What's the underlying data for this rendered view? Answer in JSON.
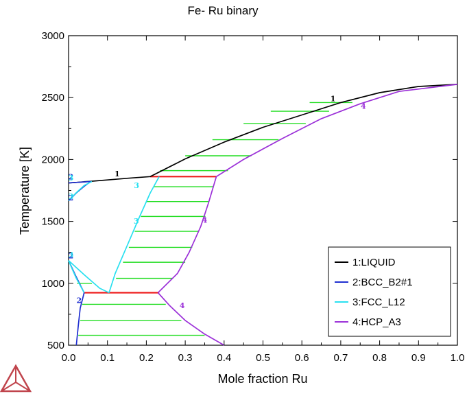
{
  "chart_data": {
    "type": "line",
    "title": "Fe- Ru binary",
    "xlabel": "Mole fraction Ru",
    "ylabel": "Temperature [K]",
    "xlim": [
      0,
      1
    ],
    "ylim": [
      500,
      3000
    ],
    "xticks": [
      0,
      0.1,
      0.2,
      0.3,
      0.4,
      0.5,
      0.6,
      0.7,
      0.8,
      0.9,
      1.0
    ],
    "xtick_labels": [
      "0.0",
      "0.1",
      "0.2",
      "0.3",
      "0.4",
      "0.5",
      "0.6",
      "0.7",
      "0.8",
      "0.9",
      "1.0"
    ],
    "yticks": [
      500,
      1000,
      1500,
      2000,
      2500,
      3000
    ],
    "ytick_labels": [
      "500",
      "1000",
      "1500",
      "2000",
      "2500",
      "3000"
    ],
    "grid": false,
    "legend_position": "bottom-right",
    "colors": {
      "LIQUID": "#000000",
      "BCC_B2#1": "#1f2fd0",
      "FCC_L12": "#28e0f0",
      "HCP_A3": "#9b30d8",
      "tie_line": "#22dd22",
      "invariant": "#ee1c1c"
    },
    "series": [
      {
        "name": "1:LIQUID",
        "key": "LIQUID",
        "label": "1",
        "segments": [
          [
            [
              0.0,
              1811
            ],
            [
              0.02,
              1815
            ],
            [
              0.05,
              1822
            ],
            [
              0.1,
              1835
            ],
            [
              0.15,
              1848
            ],
            [
              0.21,
              1862
            ],
            [
              0.3,
              2005
            ],
            [
              0.4,
              2140
            ],
            [
              0.5,
              2260
            ],
            [
              0.6,
              2360
            ],
            [
              0.7,
              2460
            ],
            [
              0.8,
              2540
            ],
            [
              0.9,
              2590
            ],
            [
              1.0,
              2607
            ]
          ]
        ]
      },
      {
        "name": "2:BCC_B2#1",
        "key": "BCC_B2#1",
        "label": "2",
        "segments": [
          [
            [
              0.0,
              1811
            ],
            [
              0.02,
              1815
            ],
            [
              0.04,
              1819
            ],
            [
              0.057,
              1822
            ]
          ],
          [
            [
              0.0,
              1667
            ],
            [
              0.02,
              1730
            ],
            [
              0.04,
              1783
            ],
            [
              0.057,
              1822
            ]
          ],
          [
            [
              0.0,
              1184
            ],
            [
              0.02,
              1050
            ],
            [
              0.04,
              924
            ]
          ],
          [
            [
              0.04,
              924
            ],
            [
              0.03,
              800
            ],
            [
              0.025,
              660
            ],
            [
              0.02,
              500
            ]
          ]
        ]
      },
      {
        "name": "3:FCC_L12",
        "key": "FCC_L12",
        "label": "3",
        "segments": [
          [
            [
              0.0,
              1667
            ],
            [
              0.02,
              1732
            ],
            [
              0.04,
              1790
            ],
            [
              0.06,
              1822
            ]
          ],
          [
            [
              0.0,
              1184
            ],
            [
              0.04,
              1070
            ],
            [
              0.08,
              960
            ],
            [
              0.104,
              924
            ]
          ],
          [
            [
              0.104,
              924
            ],
            [
              0.12,
              1080
            ],
            [
              0.15,
              1300
            ],
            [
              0.18,
              1520
            ],
            [
              0.21,
              1730
            ],
            [
              0.233,
              1862
            ]
          ],
          [
            [
              0.0,
              1184
            ],
            [
              0.01,
              1110
            ],
            [
              0.02,
              1040
            ],
            [
              0.04,
              924
            ]
          ]
        ]
      },
      {
        "name": "4:HCP_A3",
        "key": "HCP_A3",
        "label": "4",
        "segments": [
          [
            [
              0.23,
              924
            ],
            [
              0.28,
              1080
            ],
            [
              0.31,
              1250
            ],
            [
              0.34,
              1460
            ],
            [
              0.36,
              1650
            ],
            [
              0.38,
              1862
            ],
            [
              0.45,
              2000
            ],
            [
              0.55,
              2170
            ],
            [
              0.65,
              2330
            ],
            [
              0.75,
              2450
            ],
            [
              0.85,
              2550
            ],
            [
              1.0,
              2607
            ]
          ],
          [
            [
              0.23,
              924
            ],
            [
              0.26,
              820
            ],
            [
              0.3,
              700
            ],
            [
              0.35,
              590
            ],
            [
              0.4,
              500
            ]
          ]
        ]
      }
    ],
    "invariant_lines": [
      {
        "T": 1862,
        "x1": 0.21,
        "x2": 0.38
      },
      {
        "T": 924,
        "x1": 0.04,
        "x2": 0.233
      }
    ],
    "tie_lines": [
      {
        "T": 1822,
        "x1": 0.04,
        "x2": 0.057
      },
      {
        "T": 1910,
        "x1": 0.235,
        "x2": 0.41
      },
      {
        "T": 2030,
        "x1": 0.3,
        "x2": 0.47
      },
      {
        "T": 2160,
        "x1": 0.37,
        "x2": 0.54
      },
      {
        "T": 2290,
        "x1": 0.45,
        "x2": 0.61
      },
      {
        "T": 2390,
        "x1": 0.52,
        "x2": 0.67
      },
      {
        "T": 2460,
        "x1": 0.62,
        "x2": 0.73
      },
      {
        "T": 1780,
        "x1": 0.218,
        "x2": 0.372
      },
      {
        "T": 1660,
        "x1": 0.2,
        "x2": 0.36
      },
      {
        "T": 1540,
        "x1": 0.186,
        "x2": 0.352
      },
      {
        "T": 1420,
        "x1": 0.17,
        "x2": 0.335
      },
      {
        "T": 1290,
        "x1": 0.155,
        "x2": 0.318
      },
      {
        "T": 1170,
        "x1": 0.14,
        "x2": 0.3
      },
      {
        "T": 1040,
        "x1": 0.122,
        "x2": 0.268
      },
      {
        "T": 1000,
        "x1": 0.022,
        "x2": 0.06
      },
      {
        "T": 830,
        "x1": 0.035,
        "x2": 0.25
      },
      {
        "T": 700,
        "x1": 0.03,
        "x2": 0.29
      },
      {
        "T": 580,
        "x1": 0.025,
        "x2": 0.35
      }
    ],
    "curve_labels": [
      {
        "text": "1",
        "x": 0.125,
        "y": 1865,
        "series": "LIQUID"
      },
      {
        "text": "1",
        "x": 0.68,
        "y": 2470,
        "series": "LIQUID"
      },
      {
        "text": "2",
        "x": 0.006,
        "y": 1840,
        "series": "BCC_B2#1"
      },
      {
        "text": "2",
        "x": 0.006,
        "y": 1670,
        "series": "BCC_B2#1"
      },
      {
        "text": "2",
        "x": 0.006,
        "y": 1200,
        "series": "BCC_B2#1"
      },
      {
        "text": "2",
        "x": 0.027,
        "y": 840,
        "series": "BCC_B2#1"
      },
      {
        "text": "3",
        "x": 0.006,
        "y": 1830,
        "series": "FCC_L12"
      },
      {
        "text": "3",
        "x": 0.006,
        "y": 1680,
        "series": "FCC_L12"
      },
      {
        "text": "3",
        "x": 0.006,
        "y": 1210,
        "series": "FCC_L12"
      },
      {
        "text": "3",
        "x": 0.175,
        "y": 1770,
        "series": "FCC_L12"
      },
      {
        "text": "3",
        "x": 0.174,
        "y": 1480,
        "series": "FCC_L12"
      },
      {
        "text": "4",
        "x": 0.35,
        "y": 1490,
        "series": "HCP_A3"
      },
      {
        "text": "4",
        "x": 0.292,
        "y": 800,
        "series": "HCP_A3"
      },
      {
        "text": "4",
        "x": 0.758,
        "y": 2410,
        "series": "HCP_A3"
      }
    ]
  },
  "logo": {
    "icon": "thermo-calc-triangle-logo",
    "color": "#c0444c"
  }
}
